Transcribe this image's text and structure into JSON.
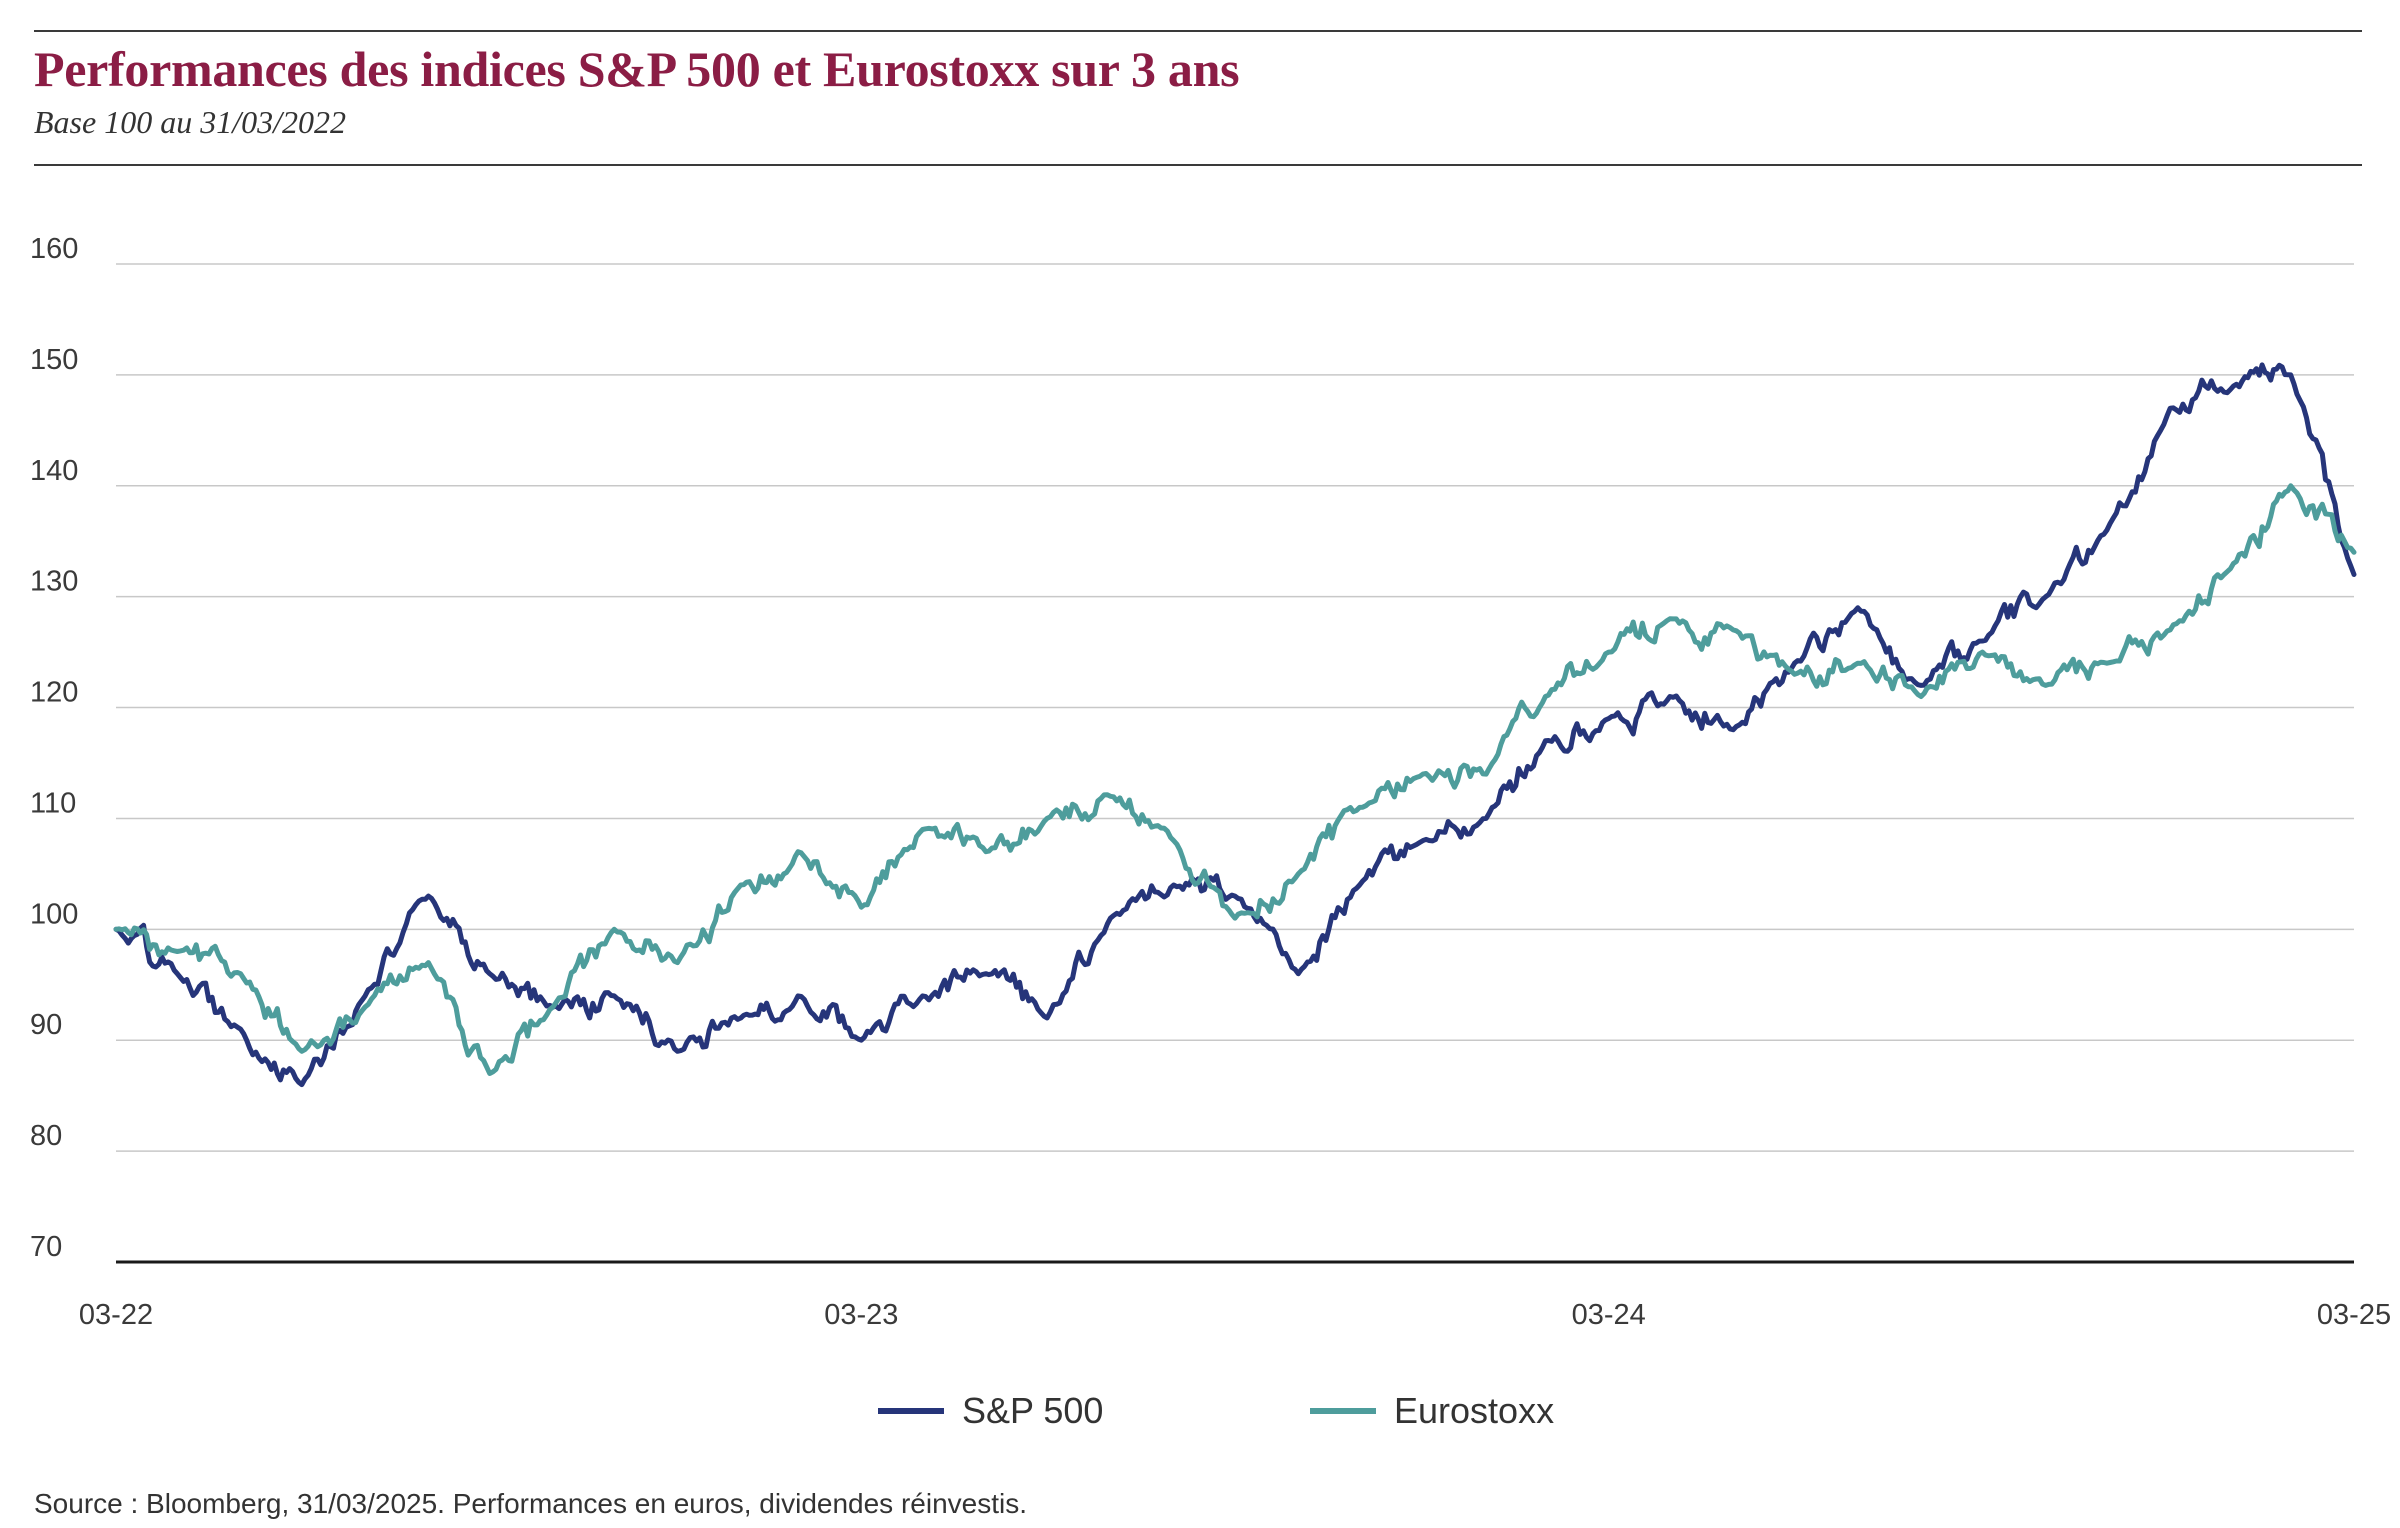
{
  "header": {
    "title": "Performances des indices S&P 500 et Eurostoxx sur 3 ans",
    "subtitle": "Base 100 au 31/03/2022"
  },
  "footer": {
    "source": "Source : Bloomberg, 31/03/2025. Performances en euros, dividendes réinvestis."
  },
  "colors": {
    "title": "#8b1d45",
    "sp500": "#26357a",
    "eurostoxx": "#4e9d9c",
    "grid": "#c8c8c8",
    "axis": "#1a1a1a"
  },
  "chart_data": {
    "type": "line",
    "xlabel": "",
    "ylabel": "",
    "xlim": [
      "2022-03-31",
      "2025-03-31"
    ],
    "ylim": [
      70,
      160
    ],
    "yticks": [
      "70",
      "80",
      "90",
      "100",
      "110",
      "120",
      "130",
      "140",
      "150",
      "160"
    ],
    "xticks": [
      {
        "date": "2022-03-31",
        "label": "03-22"
      },
      {
        "date": "2023-03-31",
        "label": "03-23"
      },
      {
        "date": "2024-03-31",
        "label": "03-24"
      },
      {
        "date": "2025-03-31",
        "label": "03-25"
      }
    ],
    "grid": true,
    "legend_position": "bottom-center",
    "x": [
      "2022-03-31",
      "2022-04-30",
      "2022-05-31",
      "2022-06-30",
      "2022-07-31",
      "2022-08-31",
      "2022-09-30",
      "2022-10-31",
      "2022-11-30",
      "2022-12-31",
      "2023-01-31",
      "2023-02-28",
      "2023-03-31",
      "2023-04-30",
      "2023-05-31",
      "2023-06-30",
      "2023-07-31",
      "2023-08-31",
      "2023-09-30",
      "2023-10-31",
      "2023-11-30",
      "2023-12-31",
      "2024-01-31",
      "2024-02-29",
      "2024-03-31",
      "2024-04-30",
      "2024-05-31",
      "2024-06-30",
      "2024-07-31",
      "2024-08-31",
      "2024-09-30",
      "2024-10-31",
      "2024-11-30",
      "2024-12-31",
      "2025-01-31",
      "2025-02-28",
      "2025-03-31"
    ],
    "series": [
      {
        "name": "S&P 500",
        "color": "#26357a",
        "values": [
          100,
          96,
          91,
          86,
          94,
          103,
          96,
          93,
          94,
          89,
          92,
          94,
          90,
          94,
          96,
          92,
          101,
          104,
          103,
          96,
          104,
          108,
          110,
          117,
          119,
          121,
          118,
          124,
          129,
          122,
          126,
          130,
          136,
          147,
          149,
          150,
          132
        ]
      },
      {
        "name": "Eurostoxx",
        "color": "#4e9d9c",
        "values": [
          100,
          98,
          96,
          89,
          93,
          97,
          87,
          93,
          100,
          97,
          104,
          107,
          102,
          109,
          107,
          110,
          112,
          108,
          101,
          105,
          111,
          114,
          114,
          121,
          125,
          128,
          127,
          123,
          124,
          121,
          125,
          122,
          124,
          127,
          133,
          140,
          134
        ]
      }
    ]
  }
}
